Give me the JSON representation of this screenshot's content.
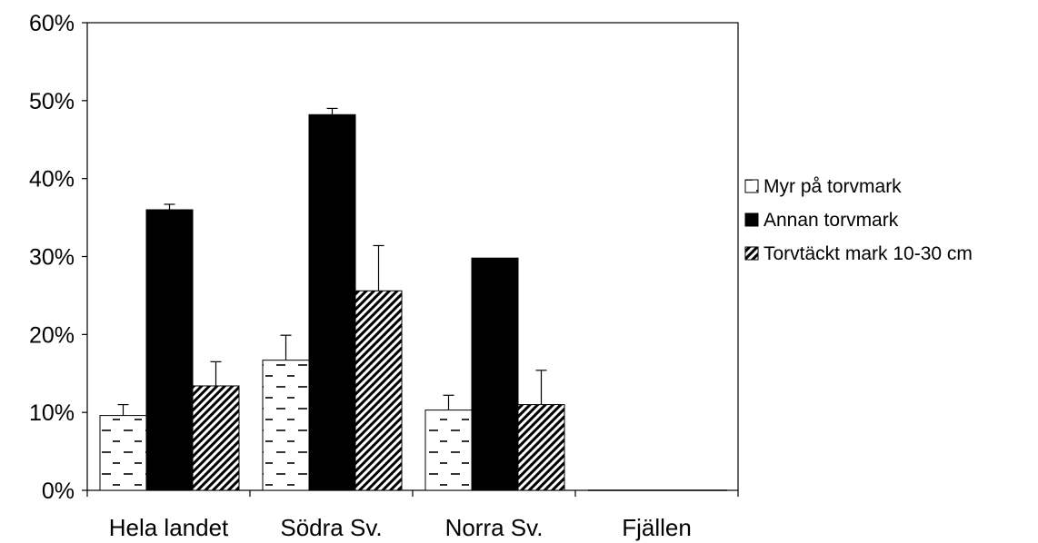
{
  "chart_data": {
    "type": "bar",
    "categories": [
      "Hela landet",
      "Södra Sv.",
      "Norra Sv.",
      "Fjällen"
    ],
    "series": [
      {
        "name": "Myr på torvmark",
        "values": [
          9.6,
          16.7,
          10.3,
          0
        ],
        "errors": [
          1.4,
          3.2,
          1.9,
          0
        ],
        "pattern": "dashes"
      },
      {
        "name": "Annan torvmark",
        "values": [
          36.0,
          48.2,
          29.8,
          0
        ],
        "errors": [
          0.7,
          0.8,
          0.0,
          0
        ],
        "pattern": "solid"
      },
      {
        "name": "Torvtäckt mark 10-30 cm",
        "values": [
          13.4,
          25.6,
          11.0,
          0
        ],
        "errors": [
          3.1,
          5.8,
          4.4,
          0
        ],
        "pattern": "diagonal"
      }
    ],
    "y_ticks": [
      "0%",
      "10%",
      "20%",
      "30%",
      "40%",
      "50%",
      "60%"
    ],
    "ylim": [
      0,
      60
    ],
    "y_unit": "%",
    "grid": false,
    "legend_position": "right"
  }
}
